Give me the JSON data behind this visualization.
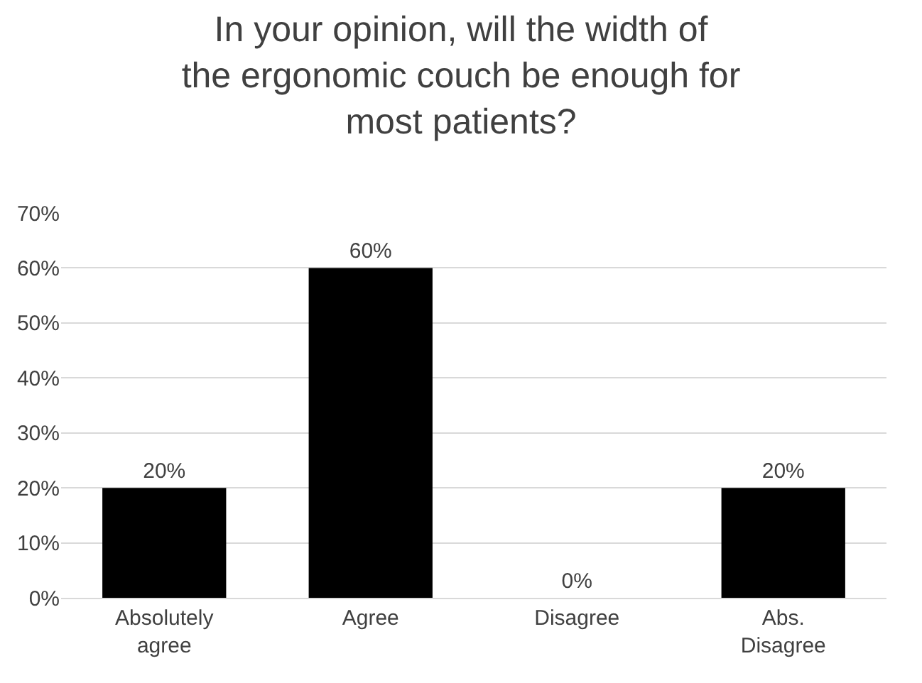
{
  "chart_data": {
    "type": "bar",
    "title": "In your opinion, will the width of the ergonomic couch be enough for most patients?",
    "categories": [
      "Absolutely agree",
      "Agree",
      "Disagree",
      "Abs. Disagree"
    ],
    "values": [
      20,
      60,
      0,
      20
    ],
    "value_labels": [
      "20%",
      "60%",
      "0%",
      "20%"
    ],
    "color": "#000000",
    "ylim": [
      0,
      70
    ],
    "yticks": [
      {
        "value": 0,
        "label": "0%"
      },
      {
        "value": 10,
        "label": "10%"
      },
      {
        "value": 20,
        "label": "20%"
      },
      {
        "value": 30,
        "label": "30%"
      },
      {
        "value": 40,
        "label": "40%"
      },
      {
        "value": 50,
        "label": "50%"
      },
      {
        "value": 60,
        "label": "60%"
      },
      {
        "value": 70,
        "label": "70%"
      }
    ],
    "grid": "y",
    "legend": false
  }
}
